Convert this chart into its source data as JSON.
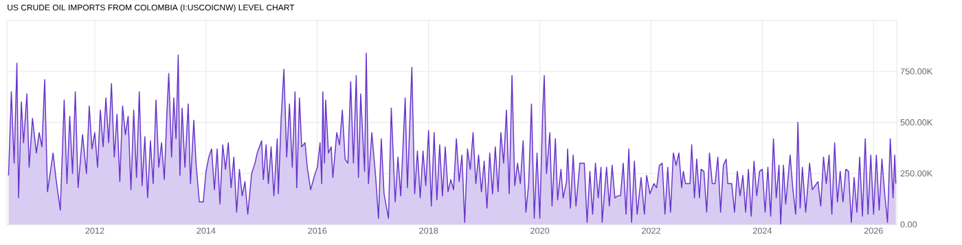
{
  "chart_data": {
    "type": "area",
    "title": "US CRUDE OIL IMPORTS FROM COLOMBIA (I:USCOICNW) LEVEL CHART",
    "x": [
      2010.45,
      2010.5,
      2010.55,
      2010.6,
      2010.63,
      2010.68,
      2010.72,
      2010.78,
      2010.82,
      2010.88,
      2010.95,
      2011.0,
      2011.05,
      2011.1,
      2011.15,
      2011.25,
      2011.3,
      2011.38,
      2011.45,
      2011.5,
      2011.55,
      2011.6,
      2011.65,
      2011.7,
      2011.78,
      2011.85,
      2011.9,
      2011.95,
      2012.0,
      2012.05,
      2012.1,
      2012.15,
      2012.2,
      2012.25,
      2012.3,
      2012.35,
      2012.4,
      2012.45,
      2012.5,
      2012.55,
      2012.6,
      2012.65,
      2012.7,
      2012.75,
      2012.8,
      2012.85,
      2012.9,
      2012.95,
      2013.0,
      2013.05,
      2013.1,
      2013.15,
      2013.2,
      2013.25,
      2013.3,
      2013.33,
      2013.38,
      2013.42,
      2013.46,
      2013.5,
      2013.53,
      2013.57,
      2013.62,
      2013.68,
      2013.72,
      2013.78,
      2013.82,
      2013.88,
      2013.95,
      2014.0,
      2014.05,
      2014.1,
      2014.15,
      2014.2,
      2014.25,
      2014.3,
      2014.35,
      2014.4,
      2014.45,
      2014.5,
      2014.55,
      2014.6,
      2014.65,
      2014.7,
      2014.75,
      2014.82,
      2014.88,
      2014.92,
      2015.0,
      2015.03,
      2015.08,
      2015.12,
      2015.17,
      2015.22,
      2015.28,
      2015.3,
      2015.35,
      2015.4,
      2015.45,
      2015.5,
      2015.55,
      2015.6,
      2015.63,
      2015.68,
      2015.72,
      2015.78,
      2015.82,
      2015.88,
      2015.95,
      2016.0,
      2016.05,
      2016.08,
      2016.1,
      2016.13,
      2016.15,
      2016.2,
      2016.25,
      2016.28,
      2016.35,
      2016.4,
      2016.45,
      2016.5,
      2016.55,
      2016.6,
      2016.65,
      2016.7,
      2016.74,
      2016.78,
      2016.85,
      2016.88,
      2016.92,
      2016.98,
      2017.05,
      2017.1,
      2017.15,
      2017.2,
      2017.28,
      2017.33,
      2017.4,
      2017.45,
      2017.5,
      2017.58,
      2017.62,
      2017.7,
      2017.75,
      2017.8,
      2017.85,
      2017.9,
      2017.95,
      2018.0,
      2018.05,
      2018.1,
      2018.15,
      2018.2,
      2018.25,
      2018.3,
      2018.35,
      2018.4,
      2018.45,
      2018.5,
      2018.55,
      2018.6,
      2018.65,
      2018.7,
      2018.75,
      2018.8,
      2018.85,
      2018.9,
      2018.95,
      2019.0,
      2019.05,
      2019.1,
      2019.15,
      2019.2,
      2019.25,
      2019.3,
      2019.35,
      2019.4,
      2019.45,
      2019.5,
      2019.55,
      2019.6,
      2019.65,
      2019.7,
      2019.75,
      2019.8,
      2019.85,
      2019.9,
      2019.95,
      2020.0,
      2020.05,
      2020.08,
      2020.12,
      2020.18,
      2020.22,
      2020.28,
      2020.32,
      2020.38,
      2020.42,
      2020.48,
      2020.5,
      2020.55,
      2020.6,
      2020.65,
      2020.72,
      2020.8,
      2020.85,
      2020.9,
      2020.95,
      2021.0,
      2021.05,
      2021.1,
      2021.12,
      2021.2,
      2021.25,
      2021.3,
      2021.35,
      2021.4,
      2021.45,
      2021.5,
      2021.55,
      2021.6,
      2021.65,
      2021.7,
      2021.75,
      2021.82,
      2021.88,
      2021.92,
      2021.98,
      2022.05,
      2022.1,
      2022.15,
      2022.2,
      2022.25,
      2022.3,
      2022.35,
      2022.4,
      2022.45,
      2022.5,
      2022.55,
      2022.58,
      2022.62,
      2022.7,
      2022.73,
      2022.78,
      2022.82,
      2022.87,
      2022.9,
      2022.95,
      2023.0,
      2023.05,
      2023.1,
      2023.15,
      2023.2,
      2023.25,
      2023.3,
      2023.35,
      2023.38,
      2023.45,
      2023.5,
      2023.55,
      2023.6,
      2023.65,
      2023.7,
      2023.75,
      2023.8,
      2023.85,
      2023.9,
      2023.95,
      2024.0,
      2024.05,
      2024.1,
      2024.15,
      2024.2,
      2024.25,
      2024.3,
      2024.33,
      2024.38,
      2024.42,
      2024.5,
      2024.55,
      2024.6,
      2024.64,
      2024.68,
      2024.72,
      2024.78,
      2024.85,
      2024.9,
      2024.95,
      2025.0,
      2025.05,
      2025.1,
      2025.15,
      2025.2,
      2025.25,
      2025.3,
      2025.35,
      2025.4,
      2025.45,
      2025.5,
      2025.55,
      2025.6,
      2025.65,
      2025.7,
      2025.75,
      2025.8,
      2025.85,
      2025.9,
      2025.95,
      2026.0,
      2026.05,
      2026.1,
      2026.15,
      2026.2,
      2026.25,
      2026.3,
      2026.35,
      2026.38,
      2026.4
    ],
    "values": [
      240000,
      650000,
      300000,
      790000,
      130000,
      600000,
      400000,
      640000,
      280000,
      520000,
      350000,
      450000,
      380000,
      710000,
      160000,
      350000,
      230000,
      70000,
      610000,
      200000,
      530000,
      250000,
      650000,
      180000,
      440000,
      250000,
      580000,
      370000,
      450000,
      280000,
      560000,
      380000,
      620000,
      400000,
      690000,
      330000,
      540000,
      210000,
      580000,
      440000,
      530000,
      170000,
      560000,
      230000,
      650000,
      190000,
      430000,
      130000,
      410000,
      200000,
      610000,
      280000,
      400000,
      220000,
      570000,
      740000,
      330000,
      620000,
      420000,
      830000,
      240000,
      570000,
      280000,
      590000,
      200000,
      510000,
      300000,
      110000,
      110000,
      260000,
      330000,
      370000,
      170000,
      370000,
      100000,
      390000,
      270000,
      400000,
      180000,
      330000,
      60000,
      270000,
      140000,
      210000,
      50000,
      250000,
      300000,
      350000,
      410000,
      220000,
      390000,
      200000,
      380000,
      140000,
      420000,
      150000,
      520000,
      760000,
      330000,
      590000,
      280000,
      650000,
      180000,
      620000,
      380000,
      400000,
      280000,
      170000,
      240000,
      280000,
      400000,
      200000,
      650000,
      300000,
      610000,
      350000,
      380000,
      230000,
      450000,
      390000,
      560000,
      320000,
      300000,
      700000,
      300000,
      730000,
      230000,
      640000,
      260000,
      840000,
      200000,
      450000,
      230000,
      30000,
      420000,
      150000,
      30000,
      570000,
      110000,
      330000,
      140000,
      620000,
      180000,
      770000,
      150000,
      360000,
      130000,
      360000,
      190000,
      460000,
      90000,
      450000,
      120000,
      390000,
      140000,
      380000,
      160000,
      220000,
      170000,
      420000,
      210000,
      340000,
      10000,
      370000,
      270000,
      450000,
      200000,
      340000,
      160000,
      310000,
      80000,
      350000,
      150000,
      380000,
      160000,
      450000,
      300000,
      560000,
      150000,
      730000,
      190000,
      300000,
      200000,
      410000,
      60000,
      200000,
      590000,
      30000,
      350000,
      30000,
      540000,
      730000,
      250000,
      450000,
      90000,
      420000,
      120000,
      270000,
      130000,
      210000,
      370000,
      80000,
      340000,
      90000,
      300000,
      300000,
      10000,
      260000,
      50000,
      300000,
      130000,
      280000,
      10000,
      280000,
      90000,
      290000,
      130000,
      140000,
      140000,
      300000,
      50000,
      370000,
      10000,
      310000,
      50000,
      230000,
      50000,
      240000,
      150000,
      200000,
      180000,
      290000,
      300000,
      50000,
      280000,
      60000,
      350000,
      290000,
      350000,
      180000,
      260000,
      200000,
      200000,
      390000,
      130000,
      320000,
      130000,
      270000,
      260000,
      60000,
      350000,
      200000,
      200000,
      330000,
      60000,
      290000,
      320000,
      200000,
      200000,
      60000,
      260000,
      140000,
      240000,
      60000,
      270000,
      40000,
      310000,
      140000,
      260000,
      270000,
      60000,
      280000,
      40000,
      420000,
      130000,
      290000,
      0,
      290000,
      100000,
      340000,
      170000,
      50000,
      500000,
      80000,
      280000,
      60000,
      300000,
      170000,
      190000,
      210000,
      90000,
      330000,
      200000,
      340000,
      50000,
      400000,
      110000,
      260000,
      110000,
      270000,
      260000,
      10000,
      230000,
      60000,
      330000,
      40000,
      420000,
      50000,
      340000,
      50000,
      340000,
      70000,
      320000,
      150000,
      10000,
      420000,
      130000,
      340000,
      200000
    ],
    "color": "#6633cc",
    "xlim": [
      2010.42,
      2026.42
    ],
    "ylim": [
      0,
      1000000
    ],
    "xticks": [
      2012,
      2014,
      2016,
      2018,
      2020,
      2022,
      2024,
      2026
    ],
    "yticks": [
      {
        "value": 0,
        "label": "0.00"
      },
      {
        "value": 250000,
        "label": "250.00K"
      },
      {
        "value": 500000,
        "label": "500.00K"
      },
      {
        "value": 750000,
        "label": "750.00K"
      }
    ],
    "grid": true
  }
}
